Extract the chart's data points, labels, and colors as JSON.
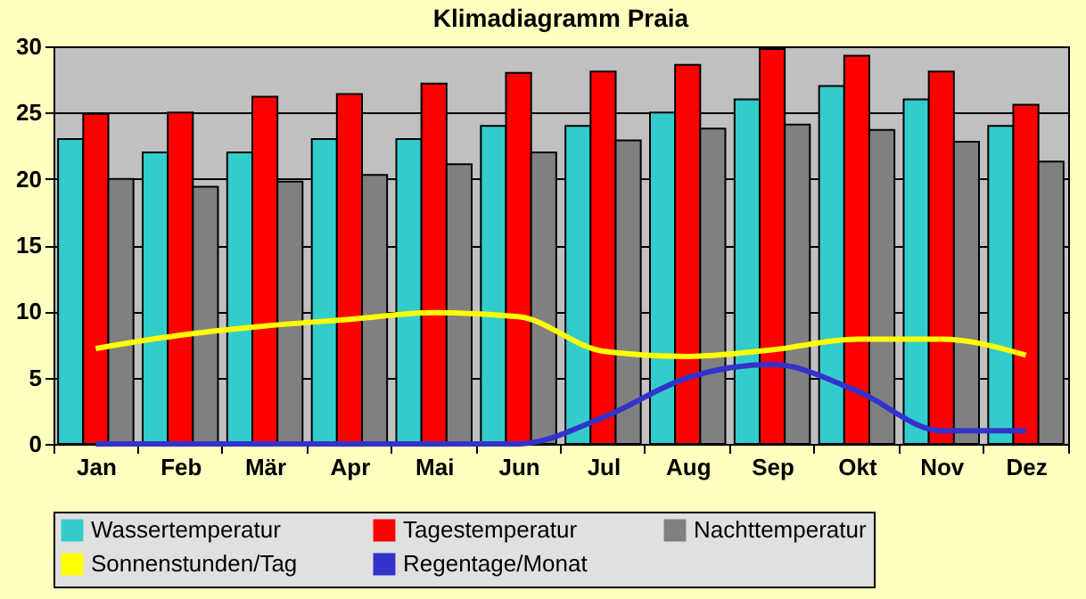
{
  "chart_data": {
    "type": "bar",
    "title": "Klimadiagramm Praia",
    "categories": [
      "Jan",
      "Feb",
      "Mär",
      "Apr",
      "Mai",
      "Jun",
      "Jul",
      "Aug",
      "Sep",
      "Okt",
      "Nov",
      "Dez"
    ],
    "series": [
      {
        "name": "Wassertemperatur",
        "color": "#33cccc",
        "values": [
          23,
          22,
          22,
          23,
          23,
          24,
          24,
          25,
          26,
          27,
          26,
          24
        ]
      },
      {
        "name": "Tagestemperatur",
        "color": "#ff0000",
        "values": [
          24.9,
          25,
          26.2,
          26.4,
          27.2,
          28,
          28.1,
          28.6,
          29.8,
          29.3,
          28.1,
          25.6
        ]
      },
      {
        "name": "Nachttemperatur",
        "color": "#808080",
        "values": [
          20,
          19.4,
          19.8,
          20.3,
          21.1,
          22,
          22.9,
          23.8,
          24.1,
          23.7,
          22.8,
          21.3
        ]
      },
      {
        "name": "Sonnenstunden/Tag",
        "type": "line",
        "color": "#ffff00",
        "values": [
          7.2,
          8.2,
          8.9,
          9.4,
          9.9,
          9.6,
          7,
          6.6,
          7.1,
          7.9,
          7.9,
          6.7
        ]
      },
      {
        "name": "Regentage/Monat",
        "type": "line",
        "color": "#3333cc",
        "values": [
          0,
          0,
          0,
          0,
          0,
          0,
          2,
          5,
          6,
          4,
          1,
          1
        ]
      }
    ],
    "ylim": [
      0,
      30
    ],
    "yticks": [
      0,
      5,
      10,
      15,
      20,
      25,
      30
    ],
    "grid": "y",
    "legend": "bottom"
  }
}
